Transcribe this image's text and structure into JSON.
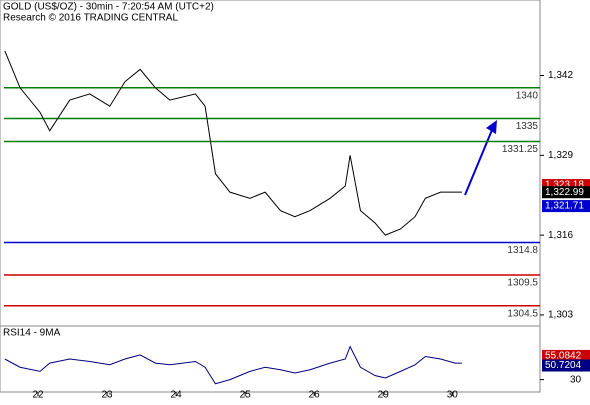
{
  "chart_data": {
    "type": "line",
    "title": "GOLD (US$/OZ) - 30min - 7:20:54 AM (UTC+2)",
    "subtitle": "Research © 2016 TRADING CENTRAL",
    "x": [
      -0.48,
      -0.26,
      0.03,
      0.17,
      0.46,
      0.75,
      1.04,
      1.26,
      1.48,
      1.7,
      1.91,
      2.28,
      2.42,
      2.57,
      2.78,
      3.07,
      3.29,
      3.51,
      3.72,
      3.94,
      4.23,
      4.45,
      4.52,
      4.67,
      4.88,
      5.03,
      5.25,
      5.46,
      5.61,
      5.83,
      6.04,
      6.14
    ],
    "series": [
      {
        "name": "GOLD",
        "color": "#000000",
        "values": [
          1346,
          1340,
          1336,
          1333,
          1338,
          1339,
          1337,
          1341,
          1343,
          1340,
          1338,
          1339,
          1337,
          1326,
          1323,
          1322,
          1323,
          1320,
          1319,
          1320,
          1322,
          1324,
          1329,
          1320,
          1318,
          1316,
          1317,
          1319,
          1322,
          1323,
          1323,
          1323
        ]
      }
    ],
    "xlim": [
      -0.55,
      7.27
    ],
    "xticks": [
      {
        "value": 0,
        "label": "22"
      },
      {
        "value": 1,
        "label": "23"
      },
      {
        "value": 2,
        "label": "24"
      },
      {
        "value": 3,
        "label": "25"
      },
      {
        "value": 4,
        "label": "26"
      },
      {
        "value": 5,
        "label": "29"
      },
      {
        "value": 6,
        "label": "30"
      }
    ],
    "ylim": [
      1301.2,
      1354.3
    ],
    "yticks": [
      {
        "value": 1303,
        "label": "1,303"
      },
      {
        "value": 1316,
        "label": "1,316"
      },
      {
        "value": 1329,
        "label": "1,329"
      },
      {
        "value": 1342,
        "label": "1,342"
      }
    ],
    "levels": [
      {
        "value": 1340,
        "color": "#008000"
      },
      {
        "value": 1335,
        "color": "#008000"
      },
      {
        "value": 1331.25,
        "color": "#008000"
      },
      {
        "value": 1314.8,
        "color": "#0000cc"
      },
      {
        "value": 1309.5,
        "color": "#cc0000"
      },
      {
        "value": 1304.5,
        "color": "#cc0000"
      }
    ],
    "price_labels": [
      {
        "value": 1323.18,
        "label": "1,323.18",
        "color": "#cc0000"
      },
      {
        "value": 1322.99,
        "label": "1,322.99",
        "color": "#000000"
      },
      {
        "value": 1321.71,
        "label": "1,321.71",
        "color": "#0000cc"
      }
    ],
    "rsi": {
      "title": "RSI14 - 9MA",
      "color": "#000080",
      "values": [
        55,
        45,
        40,
        50,
        55,
        52,
        48,
        55,
        60,
        50,
        48,
        52,
        45,
        25,
        30,
        40,
        45,
        42,
        38,
        42,
        50,
        55,
        70,
        45,
        35,
        32,
        40,
        48,
        58,
        55,
        50,
        50
      ],
      "ylim": [
        15,
        95
      ],
      "yticks": [
        30
      ],
      "labels": [
        {
          "value": 55.0842,
          "color": "#cc0000"
        },
        {
          "value": 50.7204,
          "color": "#000080"
        }
      ]
    }
  }
}
